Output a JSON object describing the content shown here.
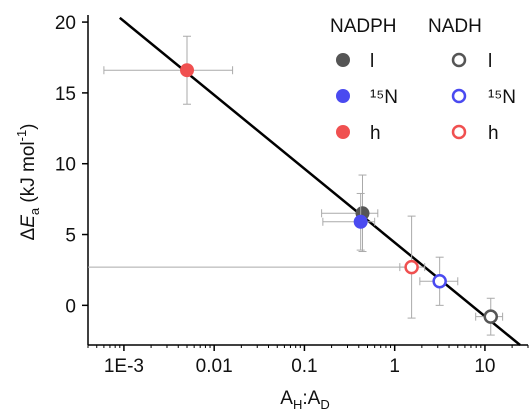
{
  "chart_data": {
    "type": "scatter",
    "xlabel": {
      "main": "A",
      "sub1": "H",
      "mid": ":A",
      "sub2": "D"
    },
    "ylabel": {
      "delta": "Δ",
      "symbol": "E",
      "sub": "a",
      "unit": " (kJ mol",
      "sup": "-1",
      "close": ")"
    },
    "xscale": "log",
    "xlim": [
      0.0004,
      30
    ],
    "xticks": [
      {
        "value": 0.001,
        "label": "1E-3"
      },
      0.01,
      0.1,
      1,
      10
    ],
    "ylim": [
      -2.8,
      20.5
    ],
    "yticks": [
      0,
      5,
      10,
      15,
      20
    ],
    "fit": {
      "x": [
        0.0009,
        24.5
      ],
      "y": [
        20.3,
        -2.8
      ]
    },
    "groups": [
      {
        "name": "NADPH",
        "filled": true,
        "series": [
          {
            "name": "l",
            "color": "#555555",
            "x": [
              0.44
            ],
            "y": [
              6.5
            ],
            "yerr": [
              2.7
            ],
            "xmin": [
              0.155
            ],
            "xmax": [
              0.65
            ]
          },
          {
            "name": "¹⁵N",
            "color": "#4a4af0",
            "x": [
              0.42
            ],
            "y": [
              5.9
            ],
            "yerr": [
              2.0
            ],
            "xmin": [
              0.16
            ],
            "xmax": [
              0.6
            ]
          },
          {
            "name": "h",
            "color": "#f05050",
            "x": [
              0.005
            ],
            "y": [
              16.6
            ],
            "yerr": [
              2.4
            ],
            "xmin": [
              0.0006
            ],
            "xmax": [
              0.016
            ]
          }
        ]
      },
      {
        "name": "NADH",
        "filled": false,
        "series": [
          {
            "name": "l",
            "color": "#555555",
            "x": [
              11.6
            ],
            "y": [
              -0.8
            ],
            "yerr": [
              1.3
            ],
            "xmin": [
              7.9
            ],
            "xmax": [
              15.7
            ]
          },
          {
            "name": "¹⁵N",
            "color": "#4a4af0",
            "x": [
              3.15
            ],
            "y": [
              1.7
            ],
            "yerr": [
              1.7
            ],
            "xmin": [
              1.9
            ],
            "xmax": [
              5
            ]
          },
          {
            "name": "h",
            "color": "#f05050",
            "x": [
              1.54
            ],
            "y": [
              2.7
            ],
            "yerr": [
              3.6
            ],
            "xmin": [
              1.14
            ],
            "xmax": [
              2.15
            ]
          }
        ]
      }
    ]
  }
}
